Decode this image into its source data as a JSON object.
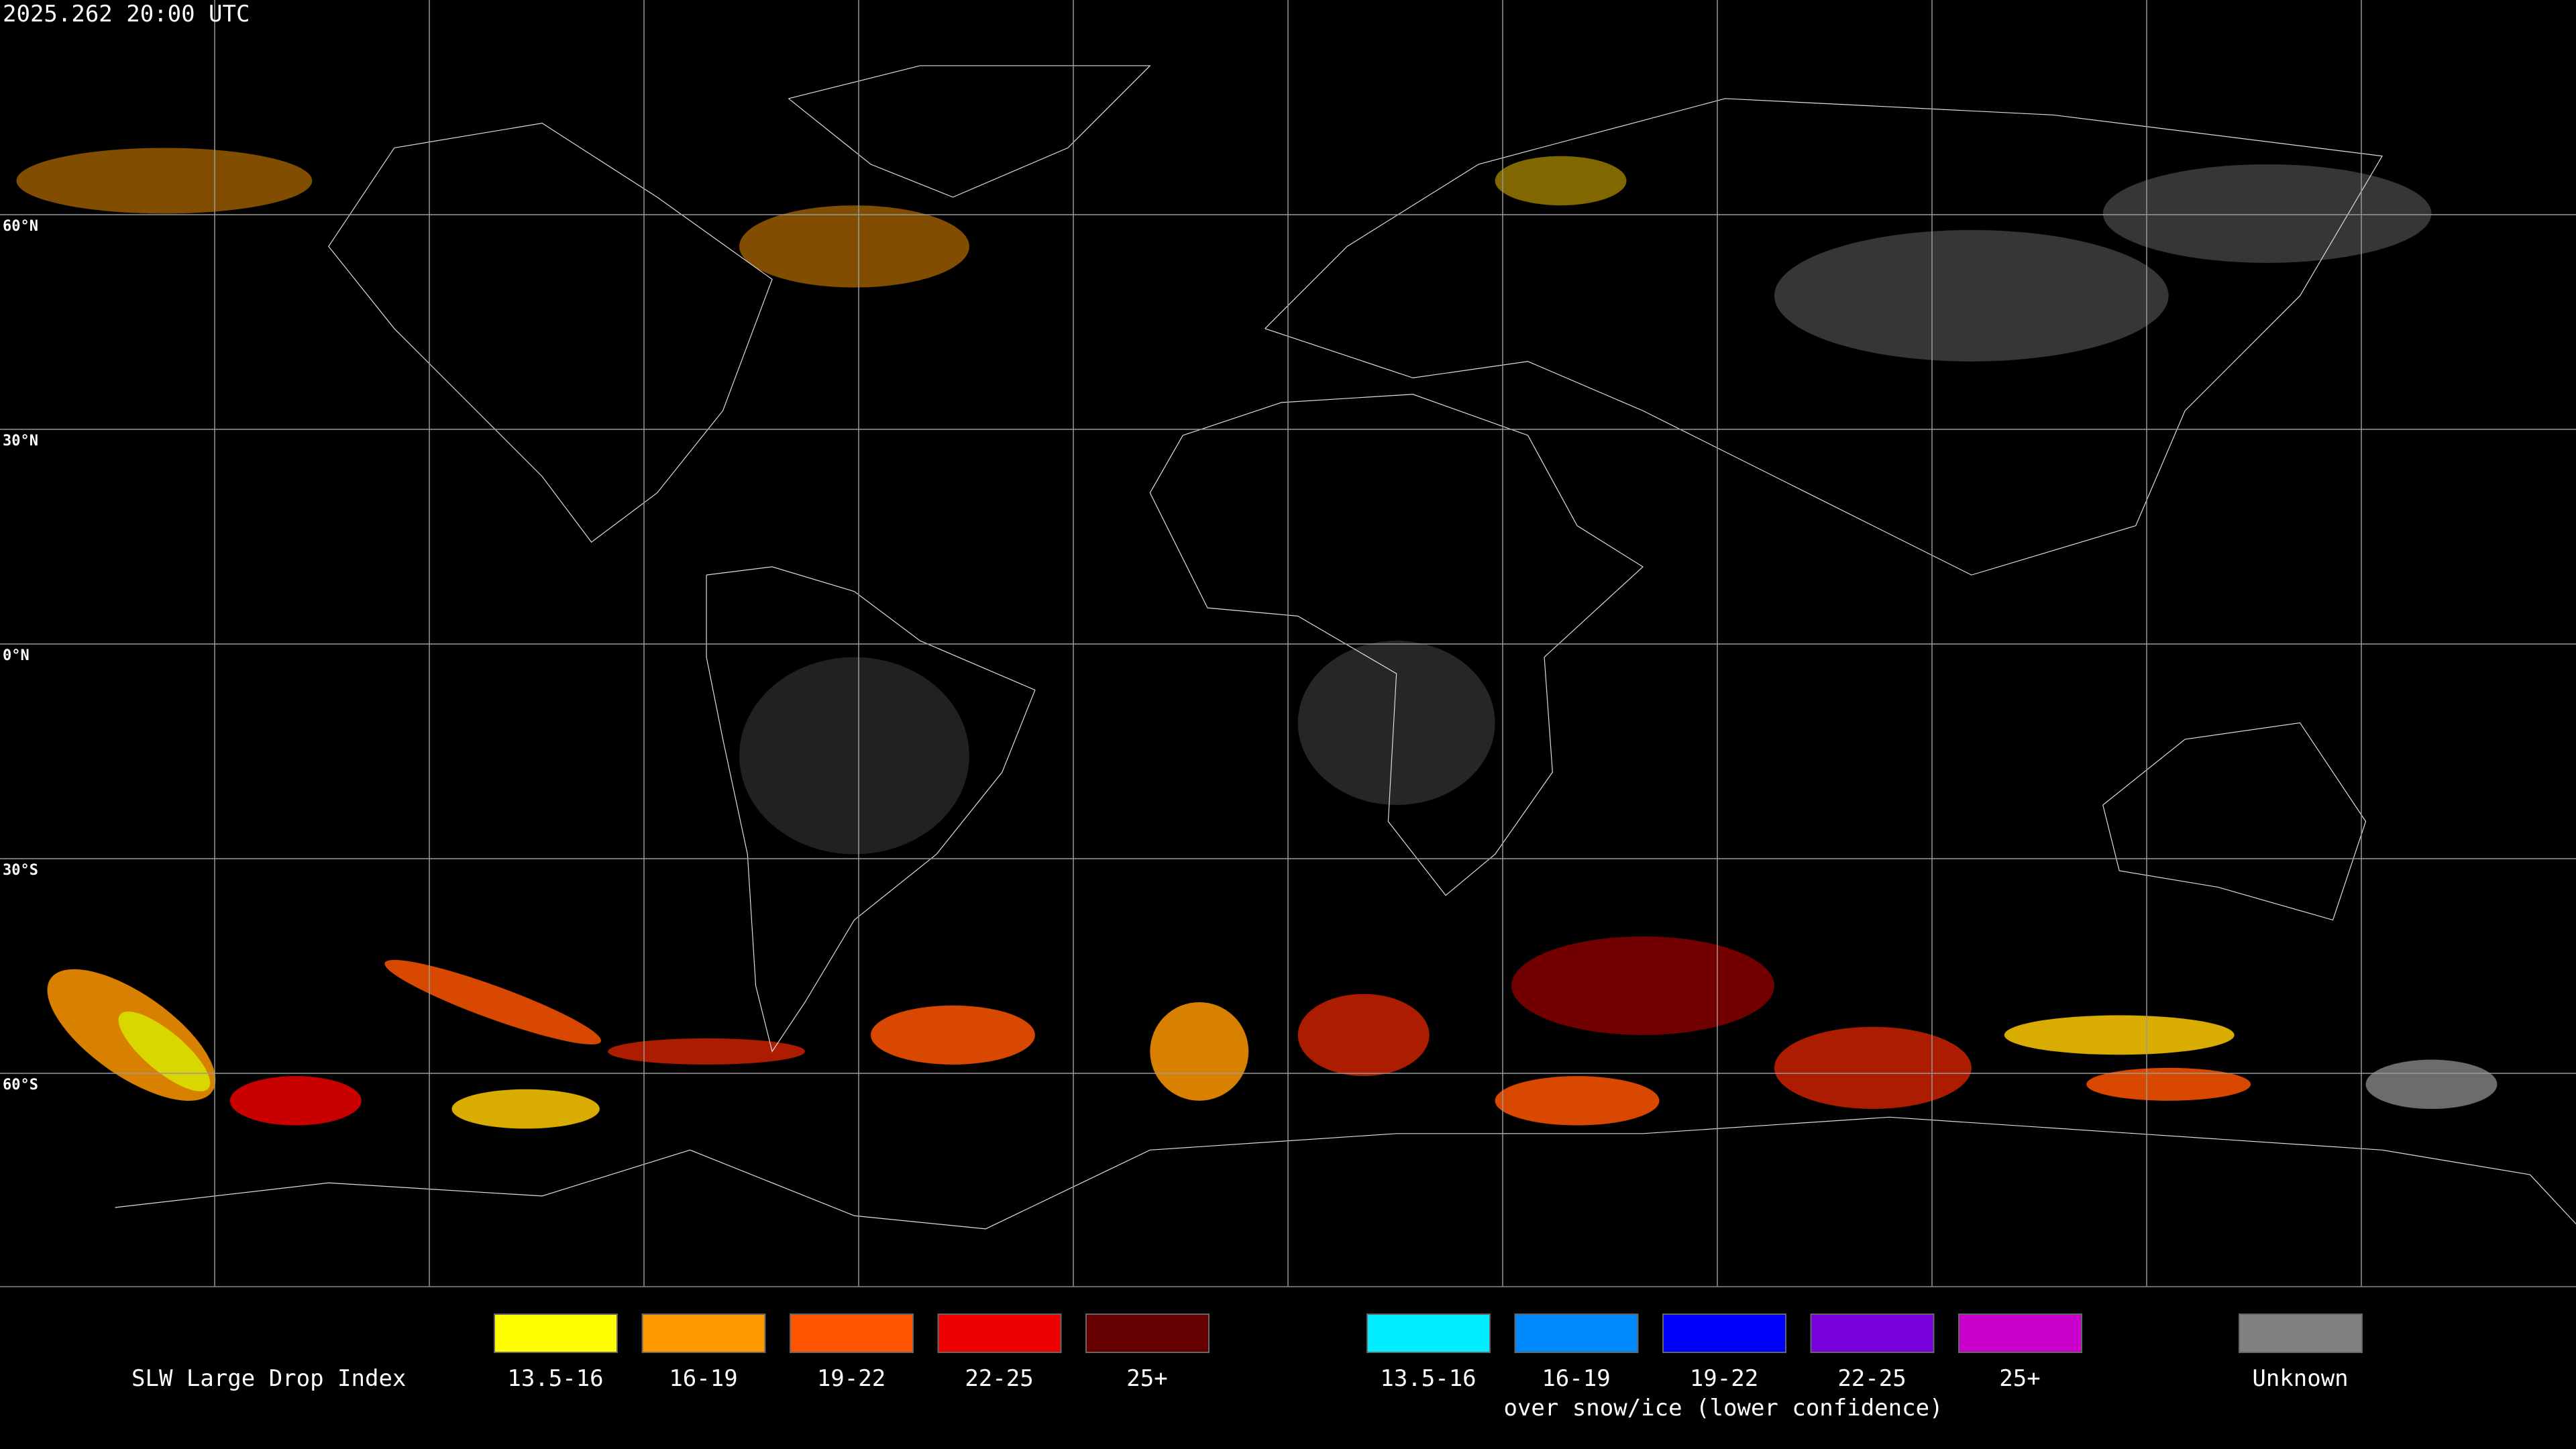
{
  "header": {
    "timestamp": "2025.262 20:00 UTC"
  },
  "map": {
    "latitude_labels": [
      "60°N",
      "30°N",
      "0°N",
      "30°S",
      "60°S"
    ]
  },
  "legend": {
    "title": "SLW Large Drop Index",
    "items": [
      {
        "label": "13.5-16",
        "color": "#ffff00"
      },
      {
        "label": "16-19",
        "color": "#ff9900"
      },
      {
        "label": "19-22",
        "color": "#ff5500"
      },
      {
        "label": "22-25",
        "color": "#ee0000"
      },
      {
        "label": "25+",
        "color": "#660000"
      }
    ],
    "snow_items": [
      {
        "label": "13.5-16",
        "color": "#00eeff"
      },
      {
        "label": "16-19",
        "color": "#0088ff"
      },
      {
        "label": "19-22",
        "color": "#0000ff"
      },
      {
        "label": "22-25",
        "color": "#7700dd"
      },
      {
        "label": "25+",
        "color": "#cc00cc"
      }
    ],
    "snow_caption": "over snow/ice (lower confidence)",
    "unknown": {
      "label": "Unknown",
      "color": "#808080"
    }
  }
}
